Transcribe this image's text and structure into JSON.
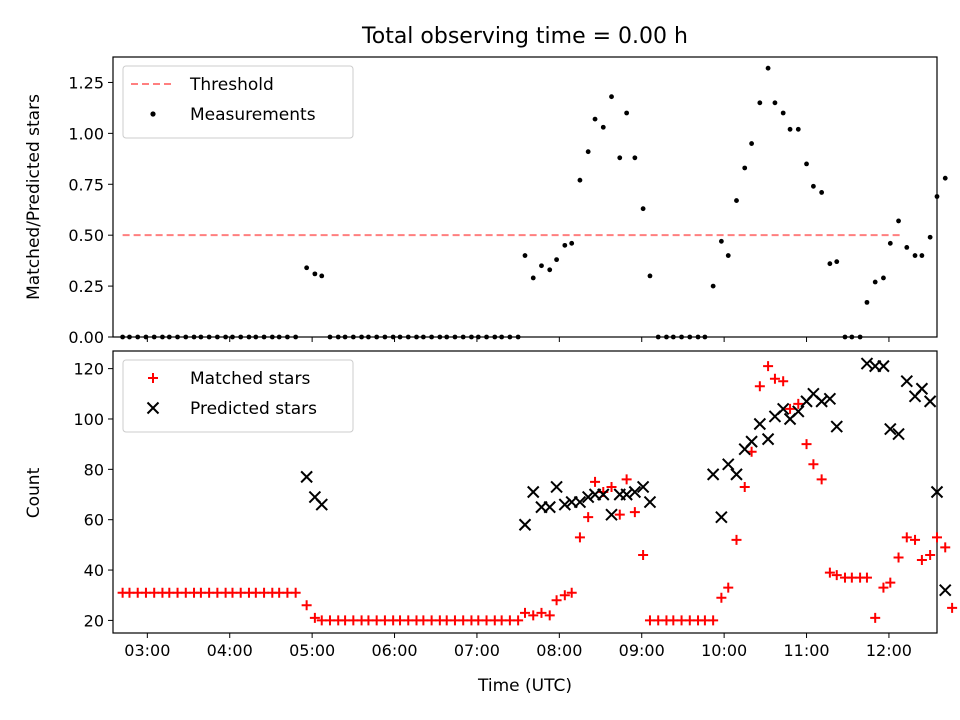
{
  "chart_data": [
    {
      "type": "scatter",
      "title": "Total observing time = 0.00 h",
      "xlabel": "",
      "ylabel": "Matched/Predicted stars",
      "xlim": [
        "02:35",
        "12:35"
      ],
      "ylim": [
        0,
        1.375
      ],
      "xticks": [
        "03:00",
        "04:00",
        "05:00",
        "06:00",
        "07:00",
        "08:00",
        "09:00",
        "10:00",
        "11:00",
        "12:00"
      ],
      "yticks": [
        "0.00",
        "0.25",
        "0.50",
        "0.75",
        "1.00",
        "1.25"
      ],
      "legend_position": "top-left",
      "threshold": {
        "name": "Threshold",
        "value": 0.5,
        "x_range": [
          "02:42",
          "12:08"
        ],
        "color": "#ff7f7f",
        "style": "dashed"
      },
      "series": [
        {
          "name": "Measurements",
          "color": "#000000",
          "marker": "dot",
          "points": [
            [
              "02:42",
              0
            ],
            [
              "02:47",
              0
            ],
            [
              "02:53",
              0
            ],
            [
              "02:59",
              0
            ],
            [
              "03:05",
              0
            ],
            [
              "03:11",
              0
            ],
            [
              "03:16",
              0
            ],
            [
              "03:22",
              0
            ],
            [
              "03:28",
              0
            ],
            [
              "03:34",
              0
            ],
            [
              "03:39",
              0
            ],
            [
              "03:45",
              0
            ],
            [
              "03:51",
              0
            ],
            [
              "03:57",
              0
            ],
            [
              "04:02",
              0
            ],
            [
              "04:08",
              0
            ],
            [
              "04:14",
              0
            ],
            [
              "04:19",
              0
            ],
            [
              "04:25",
              0
            ],
            [
              "04:31",
              0
            ],
            [
              "04:36",
              0
            ],
            [
              "04:42",
              0
            ],
            [
              "04:48",
              0
            ],
            [
              "04:56",
              0.34
            ],
            [
              "05:02",
              0.31
            ],
            [
              "05:07",
              0.3
            ],
            [
              "05:13",
              0
            ],
            [
              "05:19",
              0
            ],
            [
              "05:24",
              0
            ],
            [
              "05:30",
              0
            ],
            [
              "05:36",
              0
            ],
            [
              "05:41",
              0
            ],
            [
              "05:47",
              0
            ],
            [
              "05:53",
              0
            ],
            [
              "05:59",
              0
            ],
            [
              "06:04",
              0
            ],
            [
              "06:10",
              0
            ],
            [
              "06:16",
              0
            ],
            [
              "06:21",
              0
            ],
            [
              "06:27",
              0
            ],
            [
              "06:33",
              0
            ],
            [
              "06:38",
              0
            ],
            [
              "06:44",
              0
            ],
            [
              "06:50",
              0
            ],
            [
              "06:56",
              0
            ],
            [
              "07:01",
              0
            ],
            [
              "07:07",
              0
            ],
            [
              "07:13",
              0
            ],
            [
              "07:18",
              0
            ],
            [
              "07:24",
              0
            ],
            [
              "07:30",
              0
            ],
            [
              "07:35",
              0.4
            ],
            [
              "07:41",
              0.29
            ],
            [
              "07:47",
              0.35
            ],
            [
              "07:53",
              0.33
            ],
            [
              "07:58",
              0.38
            ],
            [
              "08:04",
              0.45
            ],
            [
              "08:09",
              0.46
            ],
            [
              "08:15",
              0.77
            ],
            [
              "08:21",
              0.91
            ],
            [
              "08:26",
              1.07
            ],
            [
              "08:32",
              1.03
            ],
            [
              "08:38",
              1.18
            ],
            [
              "08:44",
              0.88
            ],
            [
              "08:49",
              1.1
            ],
            [
              "08:55",
              0.88
            ],
            [
              "09:01",
              0.63
            ],
            [
              "09:06",
              0.3
            ],
            [
              "09:12",
              0
            ],
            [
              "09:18",
              0
            ],
            [
              "09:23",
              0
            ],
            [
              "09:29",
              0
            ],
            [
              "09:35",
              0
            ],
            [
              "09:41",
              0
            ],
            [
              "09:46",
              0
            ],
            [
              "09:52",
              0.25
            ],
            [
              "09:58",
              0.47
            ],
            [
              "10:03",
              0.4
            ],
            [
              "10:09",
              0.67
            ],
            [
              "10:15",
              0.83
            ],
            [
              "10:20",
              0.95
            ],
            [
              "10:26",
              1.15
            ],
            [
              "10:32",
              1.32
            ],
            [
              "10:37",
              1.15
            ],
            [
              "10:43",
              1.1
            ],
            [
              "10:48",
              1.02
            ],
            [
              "10:54",
              1.02
            ],
            [
              "11:00",
              0.85
            ],
            [
              "11:05",
              0.74
            ],
            [
              "11:11",
              0.71
            ],
            [
              "11:17",
              0.36
            ],
            [
              "11:22",
              0.37
            ],
            [
              "11:28",
              0
            ],
            [
              "11:33",
              0
            ],
            [
              "11:39",
              0
            ],
            [
              "11:44",
              0.17
            ],
            [
              "11:50",
              0.27
            ],
            [
              "11:56",
              0.29
            ],
            [
              "12:01",
              0.46
            ],
            [
              "12:07",
              0.57
            ],
            [
              "12:13",
              0.44
            ],
            [
              "12:19",
              0.4
            ],
            [
              "12:24",
              0.4
            ],
            [
              "12:30",
              0.49
            ],
            [
              "12:35",
              0.69
            ],
            [
              "12:41",
              0.78
            ]
          ]
        }
      ]
    },
    {
      "type": "scatter",
      "title": "",
      "xlabel": "Time (UTC)",
      "ylabel": "Count",
      "xlim": [
        "02:35",
        "12:35"
      ],
      "ylim": [
        15,
        127
      ],
      "xticks": [
        "03:00",
        "04:00",
        "05:00",
        "06:00",
        "07:00",
        "08:00",
        "09:00",
        "10:00",
        "11:00",
        "12:00"
      ],
      "yticks": [
        "20",
        "40",
        "60",
        "80",
        "100",
        "120"
      ],
      "legend_position": "top-left",
      "series": [
        {
          "name": "Matched stars",
          "color": "#ff0000",
          "marker": "plus",
          "points": [
            [
              "02:42",
              31
            ],
            [
              "02:47",
              31
            ],
            [
              "02:53",
              31
            ],
            [
              "02:59",
              31
            ],
            [
              "03:05",
              31
            ],
            [
              "03:11",
              31
            ],
            [
              "03:16",
              31
            ],
            [
              "03:22",
              31
            ],
            [
              "03:28",
              31
            ],
            [
              "03:34",
              31
            ],
            [
              "03:39",
              31
            ],
            [
              "03:45",
              31
            ],
            [
              "03:51",
              31
            ],
            [
              "03:57",
              31
            ],
            [
              "04:02",
              31
            ],
            [
              "04:08",
              31
            ],
            [
              "04:14",
              31
            ],
            [
              "04:19",
              31
            ],
            [
              "04:25",
              31
            ],
            [
              "04:31",
              31
            ],
            [
              "04:36",
              31
            ],
            [
              "04:42",
              31
            ],
            [
              "04:48",
              31
            ],
            [
              "04:56",
              26
            ],
            [
              "05:02",
              21
            ],
            [
              "05:07",
              20
            ],
            [
              "05:13",
              20
            ],
            [
              "05:19",
              20
            ],
            [
              "05:24",
              20
            ],
            [
              "05:30",
              20
            ],
            [
              "05:36",
              20
            ],
            [
              "05:41",
              20
            ],
            [
              "05:47",
              20
            ],
            [
              "05:53",
              20
            ],
            [
              "05:59",
              20
            ],
            [
              "06:04",
              20
            ],
            [
              "06:10",
              20
            ],
            [
              "06:16",
              20
            ],
            [
              "06:21",
              20
            ],
            [
              "06:27",
              20
            ],
            [
              "06:33",
              20
            ],
            [
              "06:38",
              20
            ],
            [
              "06:44",
              20
            ],
            [
              "06:50",
              20
            ],
            [
              "06:56",
              20
            ],
            [
              "07:01",
              20
            ],
            [
              "07:07",
              20
            ],
            [
              "07:13",
              20
            ],
            [
              "07:18",
              20
            ],
            [
              "07:24",
              20
            ],
            [
              "07:30",
              20
            ],
            [
              "07:35",
              23
            ],
            [
              "07:41",
              22
            ],
            [
              "07:47",
              23
            ],
            [
              "07:53",
              22
            ],
            [
              "07:58",
              28
            ],
            [
              "08:04",
              30
            ],
            [
              "08:09",
              31
            ],
            [
              "08:15",
              53
            ],
            [
              "08:21",
              61
            ],
            [
              "08:26",
              75
            ],
            [
              "08:32",
              71
            ],
            [
              "08:38",
              73
            ],
            [
              "08:44",
              62
            ],
            [
              "08:49",
              76
            ],
            [
              "08:55",
              63
            ],
            [
              "09:01",
              46
            ],
            [
              "09:06",
              20
            ],
            [
              "09:12",
              20
            ],
            [
              "09:18",
              20
            ],
            [
              "09:23",
              20
            ],
            [
              "09:29",
              20
            ],
            [
              "09:35",
              20
            ],
            [
              "09:41",
              20
            ],
            [
              "09:46",
              20
            ],
            [
              "09:52",
              20
            ],
            [
              "09:58",
              29
            ],
            [
              "10:03",
              33
            ],
            [
              "10:09",
              52
            ],
            [
              "10:15",
              73
            ],
            [
              "10:20",
              87
            ],
            [
              "10:26",
              113
            ],
            [
              "10:32",
              121
            ],
            [
              "10:37",
              116
            ],
            [
              "10:43",
              115
            ],
            [
              "10:48",
              104
            ],
            [
              "10:54",
              106
            ],
            [
              "11:00",
              90
            ],
            [
              "11:05",
              82
            ],
            [
              "11:11",
              76
            ],
            [
              "11:17",
              39
            ],
            [
              "11:22",
              38
            ],
            [
              "11:28",
              37
            ],
            [
              "11:33",
              37
            ],
            [
              "11:39",
              37
            ],
            [
              "11:44",
              37
            ],
            [
              "11:50",
              21
            ],
            [
              "11:56",
              33
            ],
            [
              "12:01",
              35
            ],
            [
              "12:07",
              45
            ],
            [
              "12:13",
              53
            ],
            [
              "12:19",
              52
            ],
            [
              "12:24",
              44
            ],
            [
              "12:30",
              46
            ],
            [
              "12:35",
              53
            ],
            [
              "12:41",
              49
            ],
            [
              "12:46",
              25
            ]
          ]
        },
        {
          "name": "Predicted stars",
          "color": "#000000",
          "marker": "x",
          "points": [
            [
              "04:56",
              77
            ],
            [
              "05:02",
              69
            ],
            [
              "05:07",
              66
            ],
            [
              "07:35",
              58
            ],
            [
              "07:41",
              71
            ],
            [
              "07:47",
              65
            ],
            [
              "07:53",
              65
            ],
            [
              "07:58",
              73
            ],
            [
              "08:04",
              66
            ],
            [
              "08:09",
              67
            ],
            [
              "08:15",
              67
            ],
            [
              "08:21",
              69
            ],
            [
              "08:26",
              70
            ],
            [
              "08:32",
              70
            ],
            [
              "08:38",
              62
            ],
            [
              "08:44",
              70
            ],
            [
              "08:49",
              70
            ],
            [
              "08:55",
              71
            ],
            [
              "09:01",
              73
            ],
            [
              "09:06",
              67
            ],
            [
              "09:52",
              78
            ],
            [
              "09:58",
              61
            ],
            [
              "10:03",
              82
            ],
            [
              "10:09",
              78
            ],
            [
              "10:15",
              88
            ],
            [
              "10:20",
              91
            ],
            [
              "10:26",
              98
            ],
            [
              "10:32",
              92
            ],
            [
              "10:37",
              101
            ],
            [
              "10:43",
              104
            ],
            [
              "10:48",
              100
            ],
            [
              "10:54",
              103
            ],
            [
              "11:00",
              107
            ],
            [
              "11:05",
              110
            ],
            [
              "11:11",
              107
            ],
            [
              "11:17",
              108
            ],
            [
              "11:22",
              97
            ],
            [
              "11:44",
              122
            ],
            [
              "11:50",
              121
            ],
            [
              "11:56",
              121
            ],
            [
              "12:01",
              96
            ],
            [
              "12:07",
              94
            ],
            [
              "12:13",
              115
            ],
            [
              "12:19",
              109
            ],
            [
              "12:24",
              112
            ],
            [
              "12:30",
              107
            ],
            [
              "12:35",
              71
            ],
            [
              "12:41",
              32
            ]
          ]
        }
      ]
    }
  ]
}
